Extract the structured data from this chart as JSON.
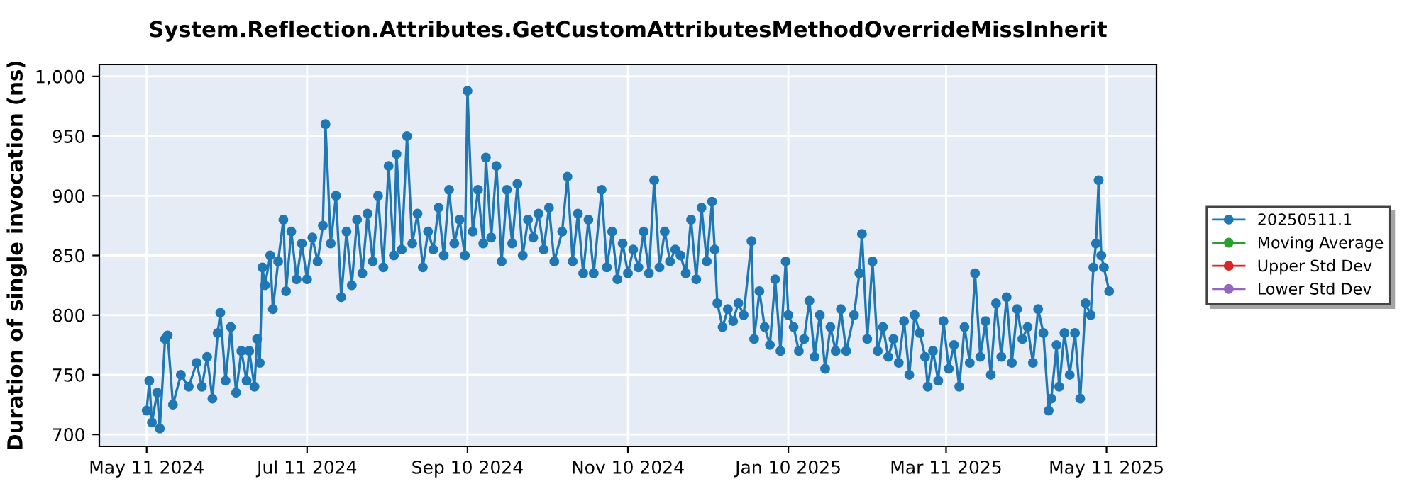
{
  "chart_data": {
    "type": "line",
    "title": "System.Reflection.Attributes.GetCustomAttributesMethodOverrideMissInherit",
    "ylabel": "Duration of single invocation (ns)",
    "x": [
      "2024-05-11",
      "2024-05-12",
      "2024-05-13",
      "2024-05-15",
      "2024-05-16",
      "2024-05-18",
      "2024-05-19",
      "2024-05-21",
      "2024-05-24",
      "2024-05-27",
      "2024-05-30",
      "2024-06-01",
      "2024-06-03",
      "2024-06-05",
      "2024-06-07",
      "2024-06-08",
      "2024-06-10",
      "2024-06-12",
      "2024-06-14",
      "2024-06-16",
      "2024-06-18",
      "2024-06-19",
      "2024-06-21",
      "2024-06-22",
      "2024-06-23",
      "2024-06-24",
      "2024-06-25",
      "2024-06-27",
      "2024-06-28",
      "2024-06-30",
      "2024-07-02",
      "2024-07-03",
      "2024-07-05",
      "2024-07-07",
      "2024-07-09",
      "2024-07-11",
      "2024-07-13",
      "2024-07-15",
      "2024-07-17",
      "2024-07-18",
      "2024-07-20",
      "2024-07-22",
      "2024-07-24",
      "2024-07-26",
      "2024-07-28",
      "2024-07-30",
      "2024-08-01",
      "2024-08-03",
      "2024-08-05",
      "2024-08-07",
      "2024-08-09",
      "2024-08-11",
      "2024-08-13",
      "2024-08-14",
      "2024-08-16",
      "2024-08-18",
      "2024-08-20",
      "2024-08-22",
      "2024-08-24",
      "2024-08-26",
      "2024-08-28",
      "2024-08-30",
      "2024-09-01",
      "2024-09-03",
      "2024-09-05",
      "2024-09-07",
      "2024-09-09",
      "2024-09-10",
      "2024-09-12",
      "2024-09-14",
      "2024-09-16",
      "2024-09-17",
      "2024-09-19",
      "2024-09-21",
      "2024-09-23",
      "2024-09-25",
      "2024-09-27",
      "2024-09-29",
      "2024-10-01",
      "2024-10-03",
      "2024-10-05",
      "2024-10-07",
      "2024-10-09",
      "2024-10-11",
      "2024-10-13",
      "2024-10-16",
      "2024-10-18",
      "2024-10-20",
      "2024-10-22",
      "2024-10-24",
      "2024-10-26",
      "2024-10-28",
      "2024-10-31",
      "2024-11-02",
      "2024-11-04",
      "2024-11-06",
      "2024-11-08",
      "2024-11-10",
      "2024-11-12",
      "2024-11-14",
      "2024-11-16",
      "2024-11-18",
      "2024-11-20",
      "2024-11-22",
      "2024-11-24",
      "2024-11-26",
      "2024-11-28",
      "2024-11-30",
      "2024-12-02",
      "2024-12-04",
      "2024-12-06",
      "2024-12-08",
      "2024-12-10",
      "2024-12-12",
      "2024-12-13",
      "2024-12-14",
      "2024-12-16",
      "2024-12-18",
      "2024-12-20",
      "2024-12-22",
      "2024-12-24",
      "2024-12-27",
      "2024-12-28",
      "2024-12-30",
      "2025-01-01",
      "2025-01-03",
      "2025-01-05",
      "2025-01-07",
      "2025-01-09",
      "2025-01-10",
      "2025-01-12",
      "2025-01-14",
      "2025-01-16",
      "2025-01-18",
      "2025-01-20",
      "2025-01-22",
      "2025-01-24",
      "2025-01-26",
      "2025-01-28",
      "2025-01-30",
      "2025-02-01",
      "2025-02-04",
      "2025-02-06",
      "2025-02-07",
      "2025-02-09",
      "2025-02-11",
      "2025-02-13",
      "2025-02-15",
      "2025-02-17",
      "2025-02-19",
      "2025-02-21",
      "2025-02-23",
      "2025-02-25",
      "2025-02-27",
      "2025-03-01",
      "2025-03-03",
      "2025-03-04",
      "2025-03-06",
      "2025-03-08",
      "2025-03-10",
      "2025-03-12",
      "2025-03-14",
      "2025-03-16",
      "2025-03-18",
      "2025-03-20",
      "2025-03-22",
      "2025-03-24",
      "2025-03-26",
      "2025-03-28",
      "2025-03-30",
      "2025-04-01",
      "2025-04-03",
      "2025-04-05",
      "2025-04-07",
      "2025-04-09",
      "2025-04-11",
      "2025-04-13",
      "2025-04-15",
      "2025-04-17",
      "2025-04-19",
      "2025-04-20",
      "2025-04-22",
      "2025-04-23",
      "2025-04-25",
      "2025-04-27",
      "2025-04-29",
      "2025-05-01",
      "2025-05-03",
      "2025-05-05",
      "2025-05-06",
      "2025-05-07",
      "2025-05-08",
      "2025-05-09",
      "2025-05-10",
      "2025-05-12"
    ],
    "series": [
      {
        "name": "20250511.1",
        "color": "#1f77b4",
        "values": [
          720,
          745,
          710,
          735,
          705,
          780,
          783,
          725,
          750,
          740,
          760,
          740,
          765,
          730,
          785,
          802,
          745,
          790,
          735,
          770,
          745,
          770,
          740,
          780,
          760,
          840,
          825,
          850,
          805,
          845,
          880,
          820,
          870,
          830,
          860,
          830,
          865,
          845,
          875,
          960,
          860,
          900,
          815,
          870,
          825,
          880,
          835,
          885,
          845,
          900,
          840,
          925,
          850,
          935,
          855,
          950,
          860,
          885,
          840,
          870,
          855,
          890,
          850,
          905,
          860,
          880,
          850,
          988,
          870,
          905,
          860,
          932,
          865,
          925,
          845,
          905,
          860,
          910,
          850,
          880,
          865,
          885,
          855,
          890,
          845,
          870,
          916,
          845,
          885,
          835,
          880,
          835,
          905,
          840,
          870,
          830,
          860,
          835,
          855,
          840,
          870,
          835,
          913,
          840,
          870,
          845,
          855,
          850,
          835,
          880,
          830,
          890,
          845,
          895,
          855,
          810,
          790,
          805,
          795,
          810,
          800,
          862,
          780,
          820,
          790,
          775,
          830,
          770,
          845,
          800,
          790,
          770,
          780,
          812,
          765,
          800,
          755,
          790,
          770,
          805,
          770,
          800,
          835,
          868,
          780,
          845,
          770,
          790,
          765,
          780,
          760,
          795,
          750,
          800,
          785,
          765,
          740,
          770,
          745,
          795,
          755,
          775,
          740,
          790,
          760,
          835,
          765,
          795,
          750,
          810,
          765,
          815,
          760,
          805,
          780,
          790,
          760,
          805,
          785,
          720,
          730,
          775,
          740,
          785,
          750,
          785,
          730,
          810,
          800,
          840,
          860,
          913,
          850,
          840,
          820
        ]
      },
      {
        "name": "Moving Average",
        "color": "#2ca02c",
        "values": [
          null,
          null,
          null,
          null,
          null,
          null,
          null,
          null,
          null,
          null,
          null,
          null,
          null,
          null,
          null,
          null,
          null,
          null,
          null,
          null,
          null,
          null,
          null,
          null,
          null,
          null,
          null,
          null,
          null,
          null,
          null,
          null,
          null,
          null,
          null,
          null,
          null,
          null,
          null,
          null,
          null,
          null,
          null,
          null,
          null,
          null,
          null,
          null,
          null,
          null,
          null,
          null,
          null,
          null,
          null,
          null,
          null,
          null,
          null,
          null,
          null,
          null,
          null,
          null,
          null,
          null,
          null,
          null,
          null,
          null,
          null,
          null,
          null,
          null,
          null,
          null,
          null,
          null,
          null,
          null,
          null,
          null,
          null,
          null,
          null,
          null,
          null,
          null,
          null,
          null,
          null,
          null,
          null,
          null,
          null,
          null,
          null,
          null,
          null,
          null,
          null,
          null,
          null,
          null,
          null,
          null,
          null,
          null,
          null,
          null,
          null,
          null,
          null,
          null,
          null,
          null,
          null,
          null,
          null,
          null,
          null,
          null,
          null,
          null,
          null,
          null,
          null,
          null,
          null,
          null,
          null,
          null,
          null,
          null,
          null,
          null,
          null,
          null,
          null,
          null,
          null,
          null,
          null,
          null,
          null,
          null,
          null,
          null,
          null,
          null,
          null,
          null,
          null,
          null,
          null,
          null,
          null,
          null,
          null,
          null,
          null,
          null,
          null,
          null,
          null,
          null,
          null,
          null,
          null,
          null,
          null,
          null,
          null,
          null,
          null,
          null,
          null,
          null,
          null,
          null,
          null,
          null,
          null,
          null,
          null,
          null,
          null,
          null,
          null,
          null,
          null,
          null,
          null,
          null,
          null
        ]
      },
      {
        "name": "Upper Std Dev",
        "color": "#d62728",
        "values": [
          null,
          null,
          null,
          null,
          null,
          null,
          null,
          null,
          null,
          null,
          null,
          null,
          null,
          null,
          null,
          null,
          null,
          null,
          null,
          null,
          null,
          null,
          null,
          null,
          null,
          null,
          null,
          null,
          null,
          null,
          null,
          null,
          null,
          null,
          null,
          null,
          null,
          null,
          null,
          null,
          null,
          null,
          null,
          null,
          null,
          null,
          null,
          null,
          null,
          null,
          null,
          null,
          null,
          null,
          null,
          null,
          null,
          null,
          null,
          null,
          null,
          null,
          null,
          null,
          null,
          null,
          null,
          null,
          null,
          null,
          null,
          null,
          null,
          null,
          null,
          null,
          null,
          null,
          null,
          null,
          null,
          null,
          null,
          null,
          null,
          null,
          null,
          null,
          null,
          null,
          null,
          null,
          null,
          null,
          null,
          null,
          null,
          null,
          null,
          null,
          null,
          null,
          null,
          null,
          null,
          null,
          null,
          null,
          null,
          null,
          null,
          null,
          null,
          null,
          null,
          null,
          null,
          null,
          null,
          null,
          null,
          null,
          null,
          null,
          null,
          null,
          null,
          null,
          null,
          null,
          null,
          null,
          null,
          null,
          null,
          null,
          null,
          null,
          null,
          null,
          null,
          null,
          null,
          null,
          null,
          null,
          null,
          null,
          null,
          null,
          null,
          null,
          null,
          null,
          null,
          null,
          null,
          null,
          null,
          null,
          null,
          null,
          null,
          null,
          null,
          null,
          null,
          null,
          null,
          null,
          null,
          null,
          null,
          null,
          null,
          null,
          null,
          null,
          null,
          null,
          null,
          null,
          null,
          null,
          null,
          null,
          null,
          null,
          null,
          null,
          null,
          null,
          null,
          null,
          null
        ]
      },
      {
        "name": "Lower Std Dev",
        "color": "#9467bd",
        "values": [
          null,
          null,
          null,
          null,
          null,
          null,
          null,
          null,
          null,
          null,
          null,
          null,
          null,
          null,
          null,
          null,
          null,
          null,
          null,
          null,
          null,
          null,
          null,
          null,
          null,
          null,
          null,
          null,
          null,
          null,
          null,
          null,
          null,
          null,
          null,
          null,
          null,
          null,
          null,
          null,
          null,
          null,
          null,
          null,
          null,
          null,
          null,
          null,
          null,
          null,
          null,
          null,
          null,
          null,
          null,
          null,
          null,
          null,
          null,
          null,
          null,
          null,
          null,
          null,
          null,
          null,
          null,
          null,
          null,
          null,
          null,
          null,
          null,
          null,
          null,
          null,
          null,
          null,
          null,
          null,
          null,
          null,
          null,
          null,
          null,
          null,
          null,
          null,
          null,
          null,
          null,
          null,
          null,
          null,
          null,
          null,
          null,
          null,
          null,
          null,
          null,
          null,
          null,
          null,
          null,
          null,
          null,
          null,
          null,
          null,
          null,
          null,
          null,
          null,
          null,
          null,
          null,
          null,
          null,
          null,
          null,
          null,
          null,
          null,
          null,
          null,
          null,
          null,
          null,
          null,
          null,
          null,
          null,
          null,
          null,
          null,
          null,
          null,
          null,
          null,
          null,
          null,
          null,
          null,
          null,
          null,
          null,
          null,
          null,
          null,
          null,
          null,
          null,
          null,
          null,
          null,
          null,
          null,
          null,
          null,
          null,
          null,
          null,
          null,
          null,
          null,
          null,
          null,
          null,
          null,
          null,
          null,
          null,
          null,
          null,
          null,
          null,
          null,
          null,
          null,
          null,
          null,
          null,
          null,
          null,
          null,
          null,
          null,
          null,
          null,
          null,
          null,
          null,
          null,
          null
        ]
      }
    ],
    "xlim": [
      "2024-04-23",
      "2025-05-30"
    ],
    "xticks": [
      {
        "value": "2024-05-11",
        "label": "May 11 2024"
      },
      {
        "value": "2024-07-11",
        "label": "Jul 11 2024"
      },
      {
        "value": "2024-09-10",
        "label": "Sep 10 2024"
      },
      {
        "value": "2024-11-10",
        "label": "Nov 10 2024"
      },
      {
        "value": "2025-01-10",
        "label": "Jan 10 2025"
      },
      {
        "value": "2025-03-11",
        "label": "Mar 11 2025"
      },
      {
        "value": "2025-05-11",
        "label": "May 11 2025"
      }
    ],
    "ylim": [
      690,
      1010
    ],
    "yticks": [
      700,
      750,
      800,
      850,
      900,
      950,
      {
        "value": 1000,
        "label": "1,000"
      }
    ],
    "grid": true,
    "legend": "right",
    "marker": "circle",
    "line_style": "solid"
  }
}
